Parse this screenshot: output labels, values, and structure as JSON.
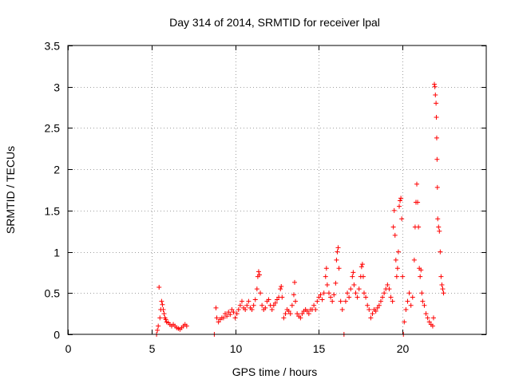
{
  "chart_data": {
    "type": "scatter",
    "title": "Day 314 of 2014, SRMTID for receiver lpal",
    "xlabel": "GPS time / hours",
    "ylabel": "SRMTID / TECUs",
    "xlim": [
      0,
      25
    ],
    "ylim": [
      0,
      3.5
    ],
    "x_ticks": [
      0,
      5,
      10,
      15,
      20
    ],
    "x_tick_labels": [
      "0",
      "5",
      "10",
      "15",
      "20"
    ],
    "y_ticks": [
      0,
      0.5,
      1,
      1.5,
      2,
      2.5,
      3,
      3.5
    ],
    "y_tick_labels": [
      "0",
      "0.5",
      "1",
      "1.5",
      "2",
      "2.5",
      "3",
      "3.5"
    ],
    "grid": true,
    "marker": "+",
    "colors": {
      "series": "#ff0000",
      "grid": "#a0a0a0",
      "axes": "#000000"
    },
    "series": [
      {
        "name": "SRMTID",
        "points": [
          [
            5.3,
            0.0
          ],
          [
            5.35,
            0.05
          ],
          [
            5.4,
            0.1
          ],
          [
            5.45,
            0.57
          ],
          [
            5.5,
            0.2
          ],
          [
            5.55,
            0.3
          ],
          [
            5.6,
            0.4
          ],
          [
            5.65,
            0.36
          ],
          [
            5.7,
            0.3
          ],
          [
            5.75,
            0.25
          ],
          [
            5.8,
            0.2
          ],
          [
            5.85,
            0.18
          ],
          [
            5.9,
            0.15
          ],
          [
            6.0,
            0.14
          ],
          [
            6.1,
            0.12
          ],
          [
            6.2,
            0.1
          ],
          [
            6.3,
            0.12
          ],
          [
            6.4,
            0.1
          ],
          [
            6.5,
            0.08
          ],
          [
            6.6,
            0.07
          ],
          [
            6.7,
            0.06
          ],
          [
            6.8,
            0.08
          ],
          [
            6.9,
            0.1
          ],
          [
            7.0,
            0.12
          ],
          [
            7.1,
            0.1
          ],
          [
            8.75,
            0.0
          ],
          [
            8.85,
            0.32
          ],
          [
            8.9,
            0.2
          ],
          [
            9.0,
            0.15
          ],
          [
            9.1,
            0.18
          ],
          [
            9.2,
            0.2
          ],
          [
            9.3,
            0.2
          ],
          [
            9.4,
            0.25
          ],
          [
            9.5,
            0.22
          ],
          [
            9.6,
            0.27
          ],
          [
            9.7,
            0.24
          ],
          [
            9.8,
            0.3
          ],
          [
            9.9,
            0.27
          ],
          [
            10.0,
            0.2
          ],
          [
            10.1,
            0.25
          ],
          [
            10.2,
            0.3
          ],
          [
            10.3,
            0.35
          ],
          [
            10.4,
            0.4
          ],
          [
            10.5,
            0.32
          ],
          [
            10.6,
            0.3
          ],
          [
            10.7,
            0.35
          ],
          [
            10.8,
            0.4
          ],
          [
            10.9,
            0.32
          ],
          [
            11.0,
            0.3
          ],
          [
            11.1,
            0.35
          ],
          [
            11.2,
            0.42
          ],
          [
            11.3,
            0.55
          ],
          [
            11.35,
            0.7
          ],
          [
            11.4,
            0.76
          ],
          [
            11.45,
            0.72
          ],
          [
            11.5,
            0.5
          ],
          [
            11.6,
            0.35
          ],
          [
            11.7,
            0.3
          ],
          [
            11.8,
            0.32
          ],
          [
            11.9,
            0.4
          ],
          [
            12.0,
            0.42
          ],
          [
            12.1,
            0.35
          ],
          [
            12.2,
            0.3
          ],
          [
            12.3,
            0.35
          ],
          [
            12.4,
            0.38
          ],
          [
            12.5,
            0.42
          ],
          [
            12.6,
            0.45
          ],
          [
            12.7,
            0.55
          ],
          [
            12.75,
            0.58
          ],
          [
            12.8,
            0.45
          ],
          [
            12.9,
            0.2
          ],
          [
            13.0,
            0.25
          ],
          [
            13.1,
            0.3
          ],
          [
            13.2,
            0.28
          ],
          [
            13.3,
            0.25
          ],
          [
            13.4,
            0.35
          ],
          [
            13.5,
            0.48
          ],
          [
            13.55,
            0.63
          ],
          [
            13.6,
            0.4
          ],
          [
            13.7,
            0.25
          ],
          [
            13.8,
            0.22
          ],
          [
            13.9,
            0.2
          ],
          [
            14.0,
            0.25
          ],
          [
            14.1,
            0.28
          ],
          [
            14.2,
            0.3
          ],
          [
            14.3,
            0.28
          ],
          [
            14.4,
            0.25
          ],
          [
            14.5,
            0.3
          ],
          [
            14.6,
            0.3
          ],
          [
            14.7,
            0.35
          ],
          [
            14.8,
            0.3
          ],
          [
            14.9,
            0.4
          ],
          [
            15.0,
            0.45
          ],
          [
            15.1,
            0.48
          ],
          [
            15.2,
            0.42
          ],
          [
            15.3,
            0.5
          ],
          [
            15.4,
            0.7
          ],
          [
            15.45,
            0.8
          ],
          [
            15.5,
            0.6
          ],
          [
            15.6,
            0.5
          ],
          [
            15.7,
            0.45
          ],
          [
            15.8,
            0.4
          ],
          [
            15.9,
            0.48
          ],
          [
            16.0,
            0.62
          ],
          [
            16.05,
            0.9
          ],
          [
            16.1,
            1.0
          ],
          [
            16.15,
            1.05
          ],
          [
            16.2,
            0.8
          ],
          [
            16.3,
            0.4
          ],
          [
            16.4,
            0.3
          ],
          [
            16.5,
            0.0
          ],
          [
            16.6,
            0.4
          ],
          [
            16.7,
            0.5
          ],
          [
            16.8,
            0.45
          ],
          [
            16.9,
            0.55
          ],
          [
            17.0,
            0.7
          ],
          [
            17.05,
            0.75
          ],
          [
            17.1,
            0.6
          ],
          [
            17.2,
            0.5
          ],
          [
            17.3,
            0.45
          ],
          [
            17.4,
            0.55
          ],
          [
            17.5,
            0.7
          ],
          [
            17.55,
            0.82
          ],
          [
            17.6,
            0.85
          ],
          [
            17.65,
            0.7
          ],
          [
            17.7,
            0.5
          ],
          [
            17.8,
            0.45
          ],
          [
            17.9,
            0.35
          ],
          [
            18.0,
            0.3
          ],
          [
            18.1,
            0.2
          ],
          [
            18.2,
            0.25
          ],
          [
            18.3,
            0.3
          ],
          [
            18.4,
            0.28
          ],
          [
            18.5,
            0.32
          ],
          [
            18.6,
            0.35
          ],
          [
            18.7,
            0.4
          ],
          [
            18.8,
            0.45
          ],
          [
            18.9,
            0.5
          ],
          [
            19.0,
            0.55
          ],
          [
            19.1,
            0.6
          ],
          [
            19.2,
            0.55
          ],
          [
            19.3,
            0.45
          ],
          [
            19.4,
            0.4
          ],
          [
            19.45,
            1.3
          ],
          [
            19.5,
            1.5
          ],
          [
            19.55,
            1.2
          ],
          [
            19.6,
            0.9
          ],
          [
            19.65,
            0.7
          ],
          [
            19.7,
            0.8
          ],
          [
            19.75,
            1.0
          ],
          [
            19.8,
            1.55
          ],
          [
            19.85,
            1.62
          ],
          [
            19.9,
            1.65
          ],
          [
            19.95,
            1.4
          ],
          [
            20.0,
            0.7
          ],
          [
            20.05,
            0.0
          ],
          [
            20.1,
            0.15
          ],
          [
            20.2,
            0.3
          ],
          [
            20.3,
            0.4
          ],
          [
            20.4,
            0.5
          ],
          [
            20.5,
            0.35
          ],
          [
            20.6,
            0.45
          ],
          [
            20.7,
            0.9
          ],
          [
            20.75,
            1.3
          ],
          [
            20.8,
            1.6
          ],
          [
            20.85,
            1.82
          ],
          [
            20.9,
            1.6
          ],
          [
            20.95,
            1.3
          ],
          [
            21.0,
            0.8
          ],
          [
            21.05,
            0.7
          ],
          [
            21.1,
            0.78
          ],
          [
            21.15,
            0.5
          ],
          [
            21.2,
            0.4
          ],
          [
            21.3,
            0.35
          ],
          [
            21.4,
            0.25
          ],
          [
            21.5,
            0.2
          ],
          [
            21.6,
            0.15
          ],
          [
            21.7,
            0.12
          ],
          [
            21.8,
            0.1
          ],
          [
            21.85,
            0.2
          ],
          [
            21.9,
            3.03
          ],
          [
            21.93,
            3.0
          ],
          [
            21.96,
            2.9
          ],
          [
            22.0,
            2.8
          ],
          [
            22.02,
            2.63
          ],
          [
            22.04,
            2.38
          ],
          [
            22.06,
            2.12
          ],
          [
            22.08,
            1.78
          ],
          [
            22.1,
            1.4
          ],
          [
            22.15,
            1.3
          ],
          [
            22.2,
            1.25
          ],
          [
            22.25,
            1.0
          ],
          [
            22.3,
            0.7
          ],
          [
            22.35,
            0.6
          ],
          [
            22.4,
            0.55
          ],
          [
            22.45,
            0.5
          ]
        ]
      }
    ]
  }
}
